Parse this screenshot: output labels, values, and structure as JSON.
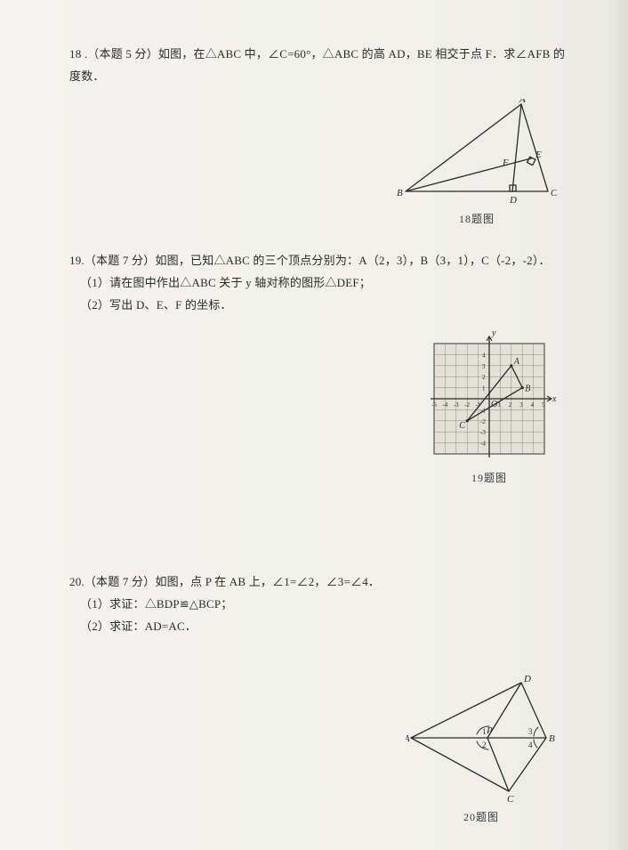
{
  "q18": {
    "text": "18 .（本题 5 分）如图，在△ABC 中，∠C=60°，△ABC 的高 AD，BE 相交于点 F．求∠AFB 的度数．",
    "figure": {
      "caption": "18题图",
      "points": {
        "A": [
          140,
          6
        ],
        "B": [
          10,
          104
        ],
        "C": [
          170,
          104
        ],
        "D": [
          130,
          104
        ],
        "E": [
          151,
          67
        ],
        "F": [
          130,
          74
        ]
      },
      "label_A": "A",
      "label_B": "B",
      "label_C": "C",
      "label_D": "D",
      "label_E": "E",
      "label_F": "F",
      "stroke": "#2a2a27",
      "width": 180,
      "height": 122
    }
  },
  "q19": {
    "line1": "19.（本题 7 分）如图，已知△ABC 的三个顶点分别为：A（2，3），B（3，1），C（-2，-2）．",
    "line2": "（1）请在图中作出△ABC 关于 y 轴对称的图形△DEF；",
    "line3": "（2）写出 D、E、F 的坐标．",
    "figure": {
      "caption": "19题图",
      "grid": {
        "xmin": -5,
        "xmax": 5,
        "ymin": -5,
        "ymax": 5,
        "cell": 12.4,
        "stroke_grid": "#8d8c86",
        "stroke_axis": "#2a2a27",
        "fill_bg": "#e3e1d8"
      },
      "A": [
        2,
        3
      ],
      "label_A": "A",
      "B": [
        3,
        1
      ],
      "label_B": "B",
      "C": [
        -2,
        -2
      ],
      "label_C": "C",
      "tick_labels_x": [
        "-5",
        "-4",
        "-3",
        "-2",
        "-1",
        "",
        "1",
        "2",
        "3",
        "4",
        "5"
      ],
      "tick_labels_y_pos": [
        "1",
        "2",
        "3",
        "4"
      ],
      "tick_labels_y_neg": [
        "-1",
        "-2",
        "-3",
        "-4"
      ],
      "label_O": "O",
      "label_x": "x",
      "label_y": "y"
    }
  },
  "q20": {
    "line1": "20.（本题 7 分）如图，点 P 在 AB 上，∠1=∠2，∠3=∠4．",
    "line2": "（1）求证：△BDP≌△BCP；",
    "line3": "（2）求证：AD=AC．",
    "figure": {
      "caption": "20题图",
      "points": {
        "A": [
          6,
          70
        ],
        "B": [
          158,
          70
        ],
        "P": [
          92,
          70
        ],
        "D": [
          130,
          8
        ],
        "C": [
          116,
          130
        ]
      },
      "label_A": "A",
      "label_B": "B",
      "label_P": "P",
      "label_D": "D",
      "label_C": "C",
      "label_1": "1",
      "label_2": "2",
      "label_3": "3",
      "label_4": "4",
      "stroke": "#2a2a27",
      "width": 170,
      "height": 146
    }
  }
}
